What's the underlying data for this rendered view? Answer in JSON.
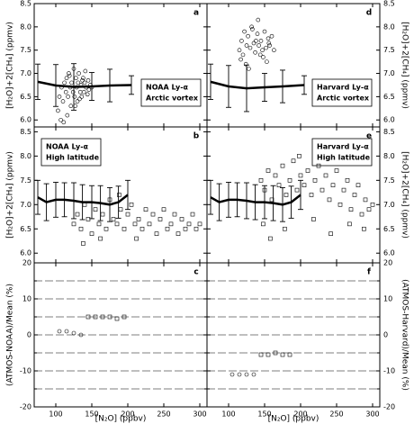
{
  "chart_data": [
    {
      "type": "scatter",
      "letter": "a",
      "annotation": [
        "NOAA Ly-α",
        "Arctic vortex"
      ],
      "ylabel": "[H₂O]+2[CH₄] (ppmv)",
      "xlim": [
        70,
        310
      ],
      "xticks": [
        100,
        150,
        200,
        250,
        300
      ],
      "ylim": [
        5.85,
        8.5
      ],
      "yticks": [
        {
          "value": 6,
          "label": "6.0"
        },
        {
          "value": 6.5,
          "label": "6.5"
        },
        {
          "value": 7,
          "label": "7.0"
        },
        {
          "value": 7.5,
          "label": "7.5"
        },
        {
          "value": 8,
          "label": "8.0"
        },
        {
          "value": 8.5,
          "label": "8.5"
        }
      ],
      "series": [
        {
          "marker": "circle",
          "x": [
            105,
            108,
            110,
            112,
            114,
            115,
            117,
            118,
            120,
            121,
            122,
            124,
            125,
            126,
            128,
            129,
            130,
            131,
            132,
            134,
            135,
            136,
            138,
            139,
            140,
            141,
            142,
            144,
            145,
            146,
            148,
            150,
            103,
            107,
            111,
            116,
            119,
            127,
            133,
            137
          ],
          "values": [
            6.5,
            6.7,
            6.4,
            6.8,
            6.6,
            6.9,
            6.5,
            7.0,
            6.7,
            6.3,
            6.8,
            6.6,
            7.1,
            6.5,
            6.9,
            6.7,
            6.4,
            6.8,
            7.0,
            6.6,
            6.75,
            6.5,
            6.9,
            6.6,
            6.8,
            7.05,
            6.7,
            6.55,
            6.85,
            6.65,
            6.75,
            6.7,
            6.2,
            6.0,
            5.95,
            6.1,
            6.95,
            6.3,
            6.45,
            6.85
          ]
        }
      ],
      "mean": {
        "x": [
          75,
          100,
          125,
          150,
          175,
          205
        ],
        "values": [
          6.82,
          6.74,
          6.71,
          6.72,
          6.74,
          6.75
        ],
        "errors": [
          0.38,
          0.45,
          0.5,
          0.3,
          0.35,
          0.2
        ]
      }
    },
    {
      "type": "scatter",
      "letter": "d",
      "annotation": [
        "Harvard Ly-α",
        "Arctic vortex"
      ],
      "ylabel": "[H₂O]+2[CH₄] (ppmv)",
      "xlim": [
        70,
        310
      ],
      "xticks": [
        100,
        150,
        200,
        250,
        300
      ],
      "ylim": [
        5.85,
        8.5
      ],
      "yticks": [
        {
          "value": 6,
          "label": "6.0"
        },
        {
          "value": 6.5,
          "label": "6.5"
        },
        {
          "value": 7,
          "label": "7.0"
        },
        {
          "value": 7.5,
          "label": "7.5"
        },
        {
          "value": 8,
          "label": "8.0"
        },
        {
          "value": 8.5,
          "label": "8.5"
        }
      ],
      "series": [
        {
          "marker": "circle",
          "x": [
            115,
            118,
            120,
            122,
            125,
            127,
            130,
            132,
            135,
            137,
            140,
            142,
            145,
            147,
            150,
            152,
            155,
            157,
            160,
            163,
            117,
            124,
            133,
            141,
            148,
            156,
            128,
            138,
            144,
            153
          ],
          "values": [
            7.5,
            7.7,
            7.4,
            7.9,
            7.6,
            7.8,
            7.55,
            8.0,
            7.65,
            7.45,
            7.85,
            7.6,
            7.7,
            7.5,
            7.9,
            7.55,
            7.75,
            7.6,
            7.8,
            7.5,
            7.3,
            7.2,
            7.95,
            8.15,
            7.35,
            7.65,
            7.1,
            7.7,
            7.4,
            7.25
          ]
        }
      ],
      "mean": {
        "x": [
          75,
          100,
          125,
          150,
          175,
          205
        ],
        "values": [
          6.82,
          6.72,
          6.68,
          6.7,
          6.72,
          6.75
        ],
        "errors": [
          0.38,
          0.45,
          0.5,
          0.3,
          0.35,
          0.2
        ]
      }
    },
    {
      "type": "scatter",
      "letter": "b",
      "annotation": [
        "NOAA Ly-α",
        "High latitude"
      ],
      "ylabel": "[H₂O]+2[CH₄] (ppmv)",
      "xlim": [
        70,
        310
      ],
      "xticks": [
        100,
        150,
        200,
        250,
        300
      ],
      "ylim": [
        5.8,
        8.6
      ],
      "yticks": [
        {
          "value": 6,
          "label": "6.0"
        },
        {
          "value": 6.5,
          "label": "6.5"
        },
        {
          "value": 7,
          "label": "7.0"
        },
        {
          "value": 7.5,
          "label": "7.5"
        },
        {
          "value": 8,
          "label": "8.0"
        },
        {
          "value": 8.5,
          "label": "8.5"
        }
      ],
      "series": [
        {
          "marker": "square",
          "x": [
            125,
            130,
            135,
            140,
            145,
            150,
            155,
            160,
            165,
            170,
            175,
            180,
            185,
            190,
            195,
            200,
            205,
            210,
            215,
            220,
            225,
            230,
            235,
            240,
            245,
            250,
            255,
            260,
            265,
            270,
            275,
            280,
            285,
            290,
            295,
            300,
            138,
            162,
            188,
            212
          ],
          "values": [
            6.6,
            6.8,
            6.5,
            7.0,
            6.7,
            6.4,
            6.9,
            6.6,
            6.8,
            6.5,
            7.1,
            6.7,
            6.6,
            6.9,
            6.5,
            6.8,
            7.0,
            6.6,
            6.7,
            6.5,
            6.9,
            6.6,
            6.8,
            6.4,
            6.7,
            6.9,
            6.5,
            6.6,
            6.8,
            6.4,
            6.7,
            6.5,
            6.6,
            6.8,
            6.5,
            6.6,
            6.2,
            6.3,
            7.2,
            6.3
          ]
        }
      ],
      "mean": {
        "x": [
          75,
          87,
          100,
          112,
          125,
          137,
          150,
          162,
          175,
          187,
          200
        ],
        "values": [
          7.15,
          7.05,
          7.1,
          7.1,
          7.08,
          7.05,
          7.05,
          7.03,
          7.0,
          7.05,
          7.2
        ],
        "errors": [
          0.35,
          0.38,
          0.36,
          0.35,
          0.37,
          0.36,
          0.34,
          0.36,
          0.35,
          0.33,
          0.3
        ]
      }
    },
    {
      "type": "scatter",
      "letter": "e",
      "annotation": [
        "Harvard Ly-α",
        "High latitude"
      ],
      "ylabel": "[H₂O]+2[CH₄] (ppmv)",
      "xlim": [
        70,
        310
      ],
      "xticks": [
        100,
        150,
        200,
        250,
        300
      ],
      "ylim": [
        5.8,
        8.6
      ],
      "yticks": [
        {
          "value": 6,
          "label": "6.0"
        },
        {
          "value": 6.5,
          "label": "6.5"
        },
        {
          "value": 7,
          "label": "7.0"
        },
        {
          "value": 7.5,
          "label": "7.5"
        },
        {
          "value": 8,
          "label": "8.0"
        },
        {
          "value": 8.5,
          "label": "8.5"
        }
      ],
      "series": [
        {
          "marker": "square",
          "x": [
            145,
            150,
            155,
            160,
            165,
            170,
            175,
            180,
            185,
            190,
            195,
            200,
            205,
            210,
            215,
            220,
            225,
            230,
            235,
            240,
            245,
            250,
            255,
            260,
            265,
            270,
            275,
            280,
            285,
            290,
            295,
            300,
            148,
            158,
            178,
            198,
            218,
            242,
            268,
            288
          ],
          "values": [
            7.5,
            7.3,
            7.7,
            7.1,
            7.6,
            7.4,
            7.8,
            7.2,
            7.5,
            7.9,
            7.3,
            7.6,
            7.4,
            7.7,
            7.2,
            7.5,
            7.8,
            7.3,
            7.6,
            7.1,
            7.4,
            7.7,
            7.0,
            7.3,
            7.5,
            6.9,
            7.2,
            7.4,
            6.8,
            7.1,
            6.9,
            7.0,
            6.6,
            6.3,
            6.5,
            8.0,
            6.7,
            6.4,
            6.6,
            6.5
          ]
        }
      ],
      "mean": {
        "x": [
          75,
          87,
          100,
          112,
          125,
          137,
          150,
          162,
          175,
          187,
          200
        ],
        "values": [
          7.15,
          7.05,
          7.1,
          7.1,
          7.08,
          7.05,
          7.05,
          7.03,
          7.0,
          7.05,
          7.2
        ],
        "errors": [
          0.35,
          0.38,
          0.36,
          0.35,
          0.37,
          0.36,
          0.34,
          0.36,
          0.35,
          0.33,
          0.3
        ]
      }
    },
    {
      "type": "scatter",
      "letter": "c",
      "ylabel": "(ATMOS-NOAA)/Mean (%)",
      "xlabel": "[N₂O] (ppbv)",
      "xlim": [
        70,
        310
      ],
      "xticks": [
        100,
        150,
        200,
        250,
        300
      ],
      "ylim": [
        -20,
        20
      ],
      "yticks": [
        -20,
        -10,
        0,
        10,
        20
      ],
      "minor_yticks": [
        -15,
        -5,
        5,
        15
      ],
      "grid": true,
      "series": [
        {
          "marker": "circle",
          "x": [
            105,
            115,
            125,
            135
          ],
          "values": [
            1,
            1,
            0.5,
            0
          ]
        },
        {
          "marker": "square",
          "x": [
            145,
            155,
            165,
            175,
            185,
            195
          ],
          "values": [
            5,
            5,
            5,
            5,
            4.5,
            5
          ]
        }
      ]
    },
    {
      "type": "scatter",
      "letter": "f",
      "ylabel": "(ATMOS-Harvard)/Mean (%)",
      "xlabel": "[N₂O] (ppbv)",
      "xlim": [
        70,
        310
      ],
      "xticks": [
        100,
        150,
        200,
        250,
        300
      ],
      "ylim": [
        -20,
        20
      ],
      "yticks": [
        -20,
        -10,
        0,
        10,
        20
      ],
      "minor_yticks": [
        -15,
        -5,
        5,
        15
      ],
      "grid": true,
      "series": [
        {
          "marker": "circle",
          "x": [
            105,
            115,
            125,
            135
          ],
          "values": [
            -11,
            -11,
            -11,
            -11
          ]
        },
        {
          "marker": "square",
          "x": [
            145,
            155,
            165,
            175,
            185
          ],
          "values": [
            -5.5,
            -5.5,
            -5,
            -5.5,
            -5.5
          ]
        }
      ]
    }
  ]
}
